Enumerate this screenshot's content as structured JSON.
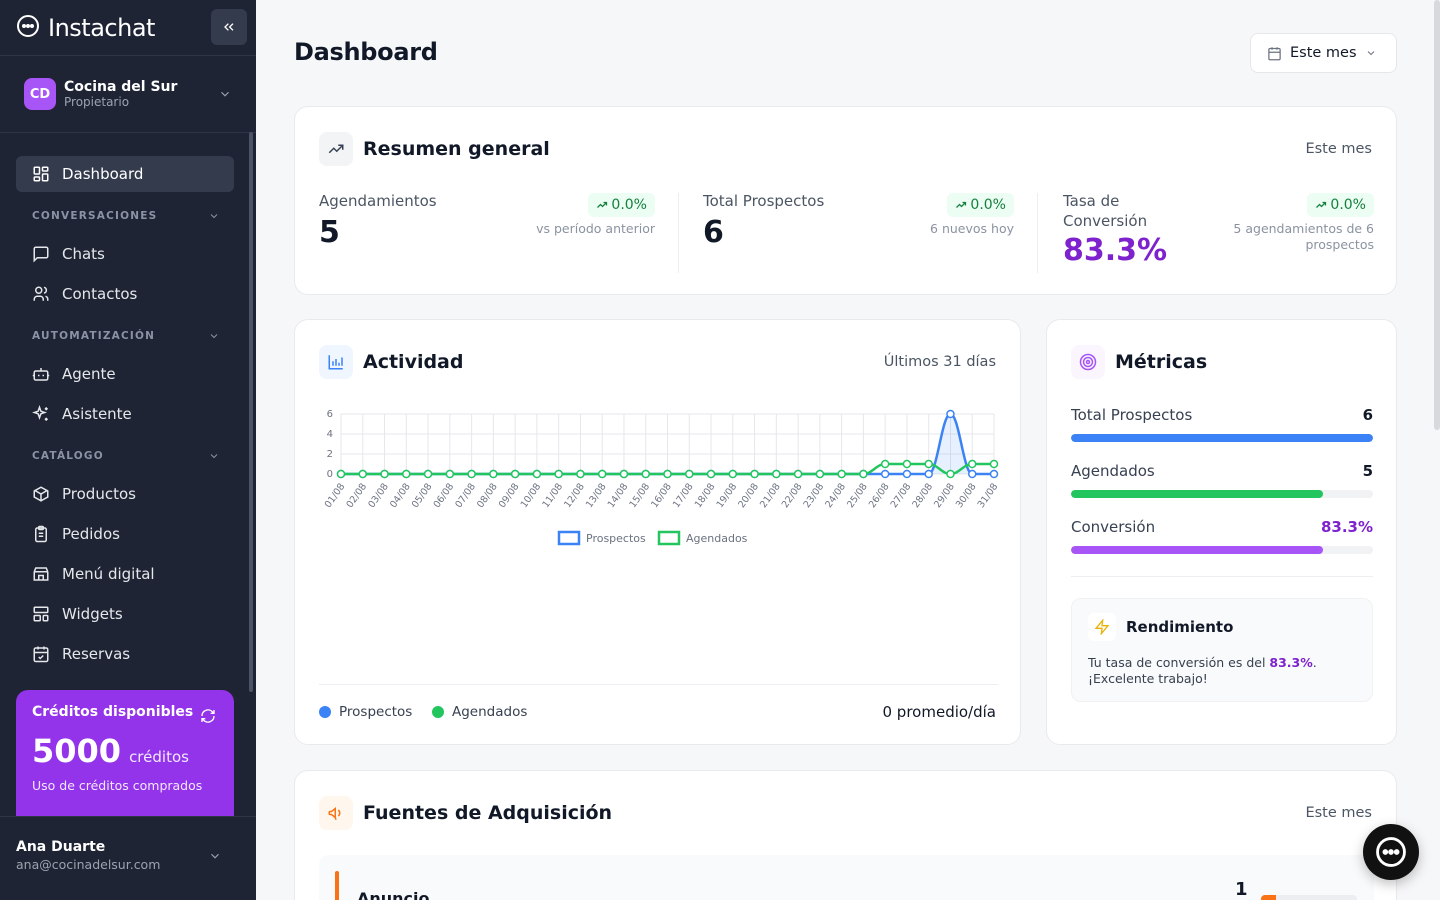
{
  "app": {
    "name": "Instachat"
  },
  "org": {
    "initials": "CD",
    "name": "Cocina del Sur",
    "role": "Propietario"
  },
  "nav": {
    "dashboard": "Dashboard",
    "sec_conversaciones": "CONVERSACIONES",
    "chats": "Chats",
    "contactos": "Contactos",
    "sec_automatizacion": "AUTOMATIZACIÓN",
    "agente": "Agente",
    "asistente": "Asistente",
    "sec_catalogo": "CATÁLOGO",
    "productos": "Productos",
    "pedidos": "Pedidos",
    "menu_digital": "Menú digital",
    "widgets": "Widgets",
    "reservas": "Reservas"
  },
  "credits": {
    "title": "Créditos disponibles",
    "amount": "5000",
    "unit": "créditos",
    "subtitle": "Uso de créditos comprados"
  },
  "user": {
    "name": "Ana Duarte",
    "email": "ana@cocinadelsur.com"
  },
  "page": {
    "title": "Dashboard",
    "period": "Este mes"
  },
  "resumen": {
    "title": "Resumen general",
    "period": "Este mes",
    "stats": [
      {
        "label": "Agendamientos",
        "value": "5",
        "change": "0.0%",
        "note": "vs período anterior"
      },
      {
        "label": "Total Prospectos",
        "value": "6",
        "change": "0.0%",
        "note": "6 nuevos hoy"
      },
      {
        "label_l1": "Tasa de",
        "label_l2": "Conversión",
        "value": "83.3%",
        "change": "0.0%",
        "note_l1": "5 agendamientos de 6",
        "note_l2": "prospectos"
      }
    ]
  },
  "actividad": {
    "title": "Actividad",
    "period": "Últimos 31 días",
    "legend_prospectos": "Prospectos",
    "legend_agendados": "Agendados",
    "avg": "0 promedio/día"
  },
  "chart_data": {
    "type": "line",
    "x": [
      "01/08",
      "02/08",
      "03/08",
      "04/08",
      "05/08",
      "06/08",
      "07/08",
      "08/08",
      "09/08",
      "10/08",
      "11/08",
      "12/08",
      "13/08",
      "14/08",
      "15/08",
      "16/08",
      "17/08",
      "18/08",
      "19/08",
      "20/08",
      "21/08",
      "22/08",
      "23/08",
      "24/08",
      "25/08",
      "26/08",
      "27/08",
      "28/08",
      "29/08",
      "30/08",
      "31/08"
    ],
    "yticks": [
      "0",
      "2",
      "4",
      "6"
    ],
    "ylim": [
      0,
      6
    ],
    "series": [
      {
        "name": "Prospectos",
        "color": "#3b82f6",
        "values": [
          0,
          0,
          0,
          0,
          0,
          0,
          0,
          0,
          0,
          0,
          0,
          0,
          0,
          0,
          0,
          0,
          0,
          0,
          0,
          0,
          0,
          0,
          0,
          0,
          0,
          0,
          0,
          0,
          6,
          0,
          0
        ]
      },
      {
        "name": "Agendados",
        "color": "#22c55e",
        "values": [
          0,
          0,
          0,
          0,
          0,
          0,
          0,
          0,
          0,
          0,
          0,
          0,
          0,
          0,
          0,
          0,
          0,
          0,
          0,
          0,
          0,
          0,
          0,
          0,
          0,
          1,
          1,
          1,
          0,
          1,
          1
        ]
      }
    ],
    "legend": "bottom",
    "grid": true
  },
  "metricas": {
    "title": "Métricas",
    "rows": [
      {
        "label": "Total Prospectos",
        "value": "6",
        "fraction": 1.0,
        "color": "#3b82f6"
      },
      {
        "label": "Agendados",
        "value": "5",
        "fraction": 0.833,
        "color": "#22c55e"
      },
      {
        "label": "Conversión",
        "value": "83.3%",
        "fraction": 0.833,
        "color": "#a855f7"
      }
    ],
    "perf_title": "Rendimiento",
    "perf_text_a": "Tu tasa de conversión es del ",
    "perf_text_b": "83.3%",
    "perf_text_c": ".",
    "perf_text_d": "¡Excelente trabajo!"
  },
  "fuentes": {
    "title": "Fuentes de Adquisición",
    "period": "Este mes",
    "rows": [
      {
        "label": "Anuncio",
        "value": "1",
        "color": "#f97316"
      }
    ]
  }
}
